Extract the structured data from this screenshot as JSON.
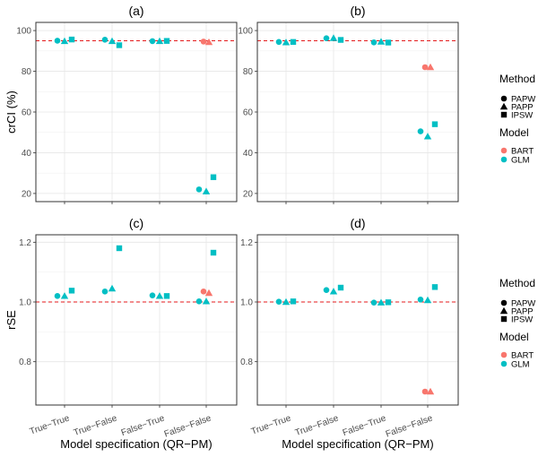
{
  "chart_data": {
    "type": "scatter",
    "categories": [
      "True−True",
      "True−False",
      "False−True",
      "False−False"
    ],
    "xlabel": "Model specification (QR−PM)",
    "rows": [
      {
        "ylabel": "crCI (%)",
        "ylim": [
          16,
          104
        ],
        "yticks": [
          20,
          40,
          60,
          80,
          100
        ],
        "tick_labels": [
          "20",
          "40",
          "60",
          "80",
          "100"
        ],
        "reference_line": 95
      },
      {
        "ylabel": "rSE",
        "ylim": [
          0.655,
          1.225
        ],
        "yticks": [
          0.8,
          1.0,
          1.2
        ],
        "tick_labels": [
          "0.8",
          "1.0",
          "1.2"
        ],
        "reference_line": 1.0
      }
    ],
    "panels": [
      {
        "title": "(a)",
        "row": 0,
        "col": 0,
        "series": [
          {
            "method": "PAPW",
            "model": "GLM",
            "values": [
              95.0,
              95.5,
              94.8,
              null
            ]
          },
          {
            "method": "PAPP",
            "model": "GLM",
            "values": [
              94.8,
              94.8,
              94.8,
              null
            ]
          },
          {
            "method": "IPSW",
            "model": "GLM",
            "values": [
              95.6,
              92.8,
              94.9,
              null
            ]
          },
          {
            "method": "PAPW",
            "model": "BART",
            "values": [
              null,
              null,
              null,
              94.6
            ]
          },
          {
            "method": "PAPP",
            "model": "BART",
            "values": [
              null,
              null,
              null,
              94.3
            ]
          },
          {
            "method": "PAPW",
            "model": "GLM",
            "values": [
              null,
              null,
              null,
              22.0
            ]
          },
          {
            "method": "PAPP",
            "model": "GLM",
            "values": [
              null,
              null,
              null,
              21.0
            ]
          },
          {
            "method": "IPSW",
            "model": "GLM",
            "values": [
              null,
              null,
              null,
              28.0
            ]
          }
        ]
      },
      {
        "title": "(b)",
        "row": 0,
        "col": 1,
        "series": [
          {
            "method": "PAPW",
            "model": "GLM",
            "values": [
              94.4,
              96.2,
              94.2,
              null
            ]
          },
          {
            "method": "PAPP",
            "model": "GLM",
            "values": [
              94.2,
              96.3,
              94.5,
              null
            ]
          },
          {
            "method": "IPSW",
            "model": "GLM",
            "values": [
              94.4,
              95.4,
              94.1,
              null
            ]
          },
          {
            "method": "PAPW",
            "model": "BART",
            "values": [
              null,
              null,
              null,
              82.0
            ]
          },
          {
            "method": "PAPP",
            "model": "BART",
            "values": [
              null,
              null,
              null,
              82.0
            ]
          },
          {
            "method": "PAPW",
            "model": "GLM",
            "values": [
              null,
              null,
              null,
              50.5
            ]
          },
          {
            "method": "PAPP",
            "model": "GLM",
            "values": [
              null,
              null,
              null,
              48.0
            ]
          },
          {
            "method": "IPSW",
            "model": "GLM",
            "values": [
              null,
              null,
              null,
              54.0
            ]
          }
        ]
      },
      {
        "title": "(c)",
        "row": 1,
        "col": 0,
        "series": [
          {
            "method": "PAPW",
            "model": "GLM",
            "values": [
              1.02,
              1.035,
              1.022,
              null
            ]
          },
          {
            "method": "PAPP",
            "model": "GLM",
            "values": [
              1.02,
              1.045,
              1.02,
              null
            ]
          },
          {
            "method": "IPSW",
            "model": "GLM",
            "values": [
              1.038,
              1.18,
              1.02,
              null
            ]
          },
          {
            "method": "PAPW",
            "model": "BART",
            "values": [
              null,
              null,
              null,
              1.035
            ]
          },
          {
            "method": "PAPP",
            "model": "BART",
            "values": [
              null,
              null,
              null,
              1.03
            ]
          },
          {
            "method": "PAPW",
            "model": "GLM",
            "values": [
              null,
              null,
              null,
              1.002
            ]
          },
          {
            "method": "PAPP",
            "model": "GLM",
            "values": [
              null,
              null,
              null,
              1.002
            ]
          },
          {
            "method": "IPSW",
            "model": "GLM",
            "values": [
              null,
              null,
              null,
              1.165
            ]
          }
        ]
      },
      {
        "title": "(d)",
        "row": 1,
        "col": 1,
        "series": [
          {
            "method": "PAPW",
            "model": "GLM",
            "values": [
              1.001,
              1.04,
              0.998,
              null
            ]
          },
          {
            "method": "PAPP",
            "model": "GLM",
            "values": [
              1.0,
              1.035,
              0.998,
              null
            ]
          },
          {
            "method": "IPSW",
            "model": "GLM",
            "values": [
              1.002,
              1.048,
              0.999,
              null
            ]
          },
          {
            "method": "PAPW",
            "model": "BART",
            "values": [
              null,
              null,
              null,
              0.7
            ]
          },
          {
            "method": "PAPP",
            "model": "BART",
            "values": [
              null,
              null,
              null,
              0.7
            ]
          },
          {
            "method": "PAPW",
            "model": "GLM",
            "values": [
              null,
              null,
              null,
              1.008
            ]
          },
          {
            "method": "PAPP",
            "model": "GLM",
            "values": [
              null,
              null,
              null,
              1.006
            ]
          },
          {
            "method": "IPSW",
            "model": "GLM",
            "values": [
              null,
              null,
              null,
              1.05
            ]
          }
        ]
      }
    ],
    "legend": {
      "method_title": "Method",
      "methods": [
        "PAPW",
        "PAPP",
        "IPSW"
      ],
      "model_title": "Model",
      "models": [
        "BART",
        "GLM"
      ],
      "position": "right"
    },
    "colors": {
      "BART": "#f8766d",
      "GLM": "#00bfc4",
      "reference_line": "#e41a1c"
    }
  }
}
